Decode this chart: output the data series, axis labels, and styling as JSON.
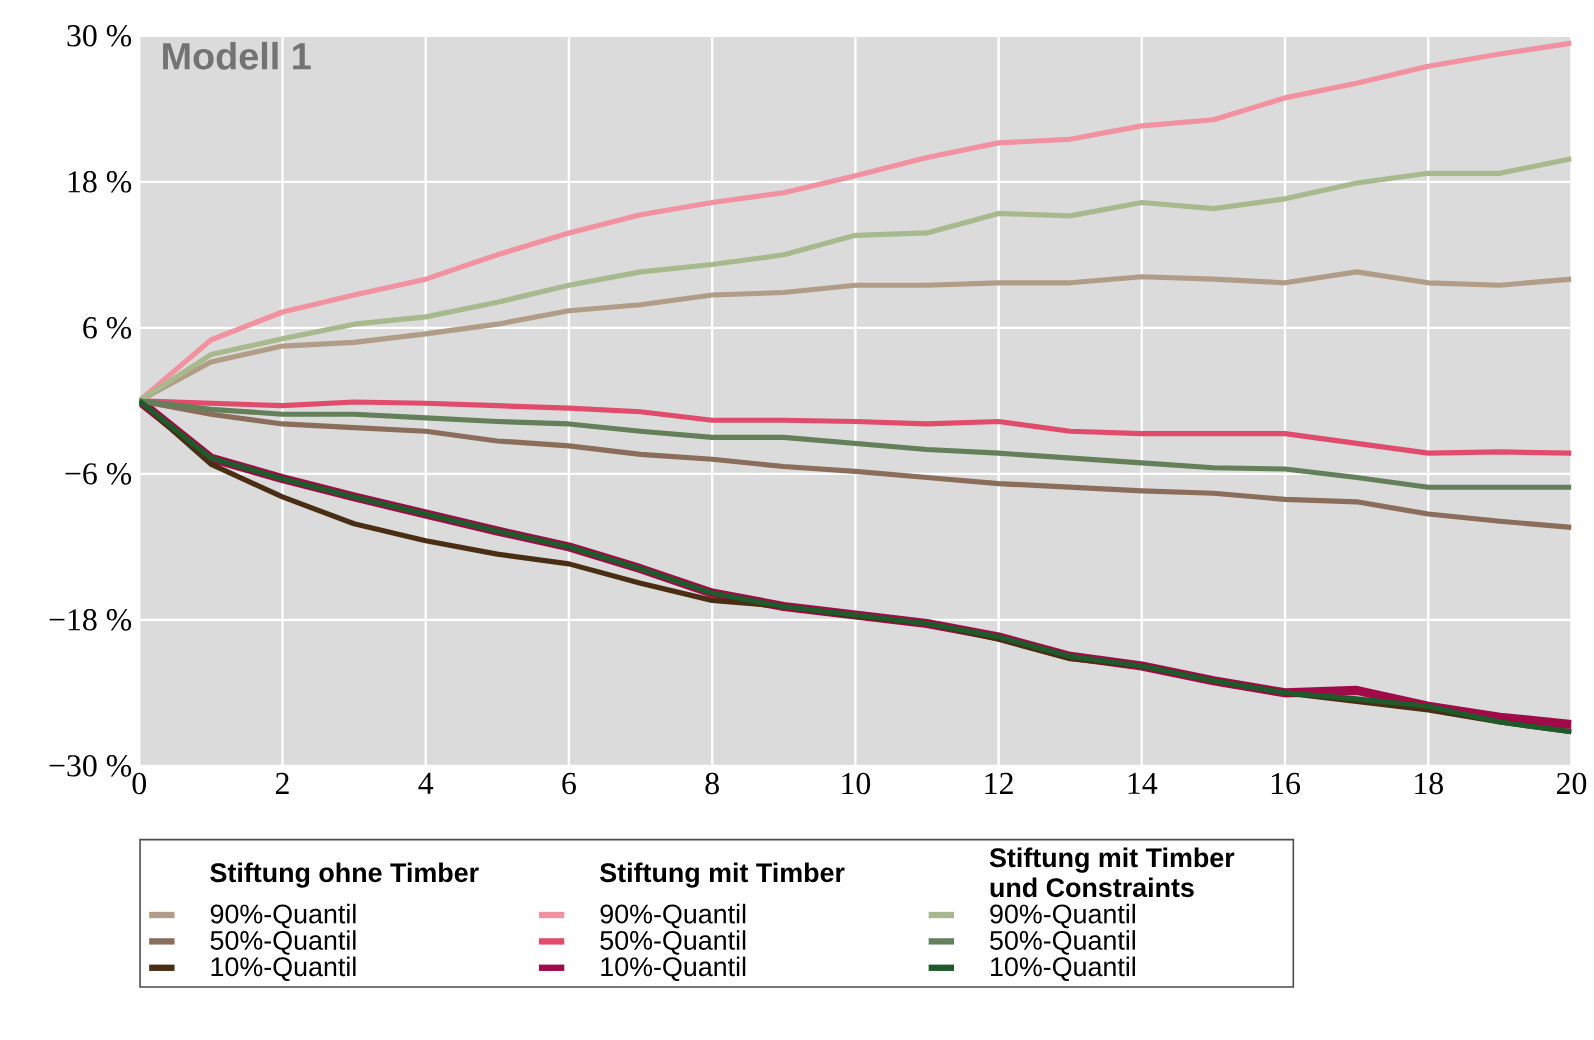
{
  "chart_data": {
    "type": "line",
    "title": "Modell 1",
    "x": [
      0,
      1,
      2,
      3,
      4,
      5,
      6,
      7,
      8,
      9,
      10,
      11,
      12,
      13,
      14,
      15,
      16,
      17,
      18,
      19,
      20
    ],
    "xlim": [
      0,
      20
    ],
    "xticks": [
      0,
      2,
      4,
      6,
      8,
      10,
      12,
      14,
      16,
      18,
      20
    ],
    "ylim": [
      -30,
      30
    ],
    "yticks": [
      {
        "value": -30,
        "label": "−30 %"
      },
      {
        "value": -18,
        "label": "−18 %"
      },
      {
        "value": -6,
        "label": "−6 %"
      },
      {
        "value": 6,
        "label": "6 %"
      },
      {
        "value": 18,
        "label": "18 %"
      },
      {
        "value": 30,
        "label": "30 %"
      }
    ],
    "grid": true,
    "legend": "bottom",
    "annotations": [
      "Stiftung ohne Timber",
      "Stiftung mit Timber",
      "Stiftung mit Timber und Constraints"
    ],
    "series": [
      {
        "name": "90%-Quantil",
        "color": "#b19d87",
        "values": [
          0,
          3.2,
          4.5,
          4.8,
          5.5,
          6.3,
          7.4,
          7.9,
          8.7,
          8.9,
          9.5,
          9.5,
          9.7,
          9.7,
          10.2,
          10.0,
          9.7,
          10.6,
          9.7,
          9.5,
          10.0
        ]
      },
      {
        "name": "50%-Quantil",
        "color": "#8b6d5c",
        "values": [
          0,
          -1.1,
          -1.9,
          -2.2,
          -2.5,
          -3.3,
          -3.7,
          -4.4,
          -4.8,
          -5.4,
          -5.8,
          -6.3,
          -6.8,
          -7.1,
          -7.4,
          -7.6,
          -8.1,
          -8.3,
          -9.3,
          -9.9,
          -10.4
        ]
      },
      {
        "name": "10%-Quantil",
        "color": "#4a2e14",
        "values": [
          0,
          -5.2,
          -7.9,
          -10.1,
          -11.5,
          -12.6,
          -13.4,
          -15.0,
          -16.4,
          -16.9,
          -17.7,
          -18.3,
          -19.6,
          -21.2,
          -21.8,
          -23.0,
          -24.0,
          -24.7,
          -25.4,
          -26.4,
          -27.2
        ]
      },
      {
        "name": "90%-Quantil",
        "color": "#f291a0",
        "values": [
          0,
          5.0,
          7.3,
          8.7,
          10.0,
          12.0,
          13.8,
          15.3,
          16.3,
          17.1,
          18.5,
          20.0,
          21.2,
          21.5,
          22.6,
          23.1,
          24.9,
          26.1,
          27.5,
          28.5,
          29.4
        ]
      },
      {
        "name": "50%-Quantil",
        "color": "#e14c6c",
        "values": [
          0,
          -0.2,
          -0.4,
          -0.1,
          -0.2,
          -0.4,
          -0.6,
          -0.9,
          -1.6,
          -1.6,
          -1.7,
          -1.9,
          -1.7,
          -2.5,
          -2.7,
          -2.7,
          -2.7,
          -3.5,
          -4.3,
          -4.2,
          -4.3
        ]
      },
      {
        "name": "10%-Quantil",
        "color": "#a10a48",
        "values": [
          0,
          -4.7,
          -6.4,
          -7.9,
          -9.3,
          -10.7,
          -12.0,
          -13.8,
          -15.8,
          -16.9,
          -17.6,
          -18.3,
          -19.4,
          -21.0,
          -21.8,
          -23.0,
          -24.0,
          -23.8,
          -25.1,
          -26.0,
          -26.6
        ]
      },
      {
        "name": "90%-Quantil",
        "color": "#a8b98e",
        "values": [
          0,
          3.8,
          5.1,
          6.3,
          6.9,
          8.1,
          9.5,
          10.6,
          11.2,
          12.0,
          13.6,
          13.8,
          15.4,
          15.2,
          16.3,
          15.8,
          16.6,
          17.9,
          18.7,
          18.7,
          19.9
        ]
      },
      {
        "name": "50%-Quantil",
        "color": "#64805a",
        "values": [
          0,
          -0.7,
          -1.1,
          -1.1,
          -1.4,
          -1.7,
          -1.9,
          -2.5,
          -3.0,
          -3.0,
          -3.5,
          -4.0,
          -4.3,
          -4.7,
          -5.1,
          -5.5,
          -5.6,
          -6.3,
          -7.1,
          -7.1,
          -7.1
        ]
      },
      {
        "name": "10%-Quantil",
        "color": "#1e5a2a",
        "values": [
          0,
          -4.7,
          -6.4,
          -7.9,
          -9.3,
          -10.7,
          -12.0,
          -13.8,
          -15.8,
          -16.9,
          -17.6,
          -18.3,
          -19.4,
          -21.0,
          -21.8,
          -23.0,
          -24.0,
          -24.5,
          -25.1,
          -26.4,
          -27.2
        ]
      }
    ]
  }
}
